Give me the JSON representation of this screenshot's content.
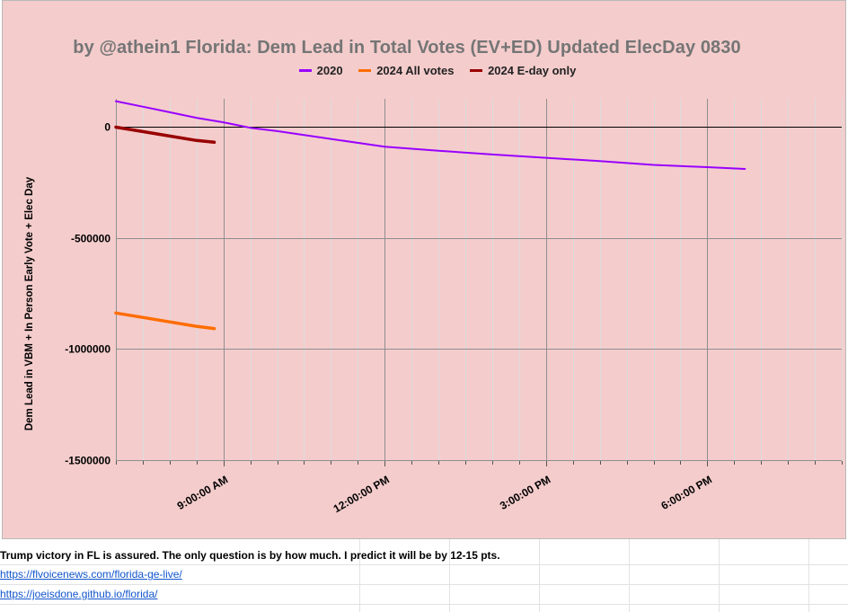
{
  "chart_data": {
    "type": "line",
    "title": "by @athein1 Florida: Dem Lead in Total Votes (EV+ED) Updated ElecDay 0830",
    "xlabel": "",
    "ylabel": "Dem Lead in VBM + In Person Early Vote + Elec Day",
    "x_unit": "time of day (hours)",
    "xlim": [
      7.0,
      20.5
    ],
    "ylim": [
      -1500000,
      120000
    ],
    "y_ticks": [
      0,
      -500000,
      -1000000,
      -1500000
    ],
    "y_tick_labels": [
      "0",
      "-500000",
      "-1000000",
      "-1500000"
    ],
    "x_ticks": [
      9,
      12,
      15,
      18
    ],
    "x_tick_labels": [
      "9:00:00 AM",
      "12:00:00 PM",
      "3:00:00 PM",
      "6:00:00 PM"
    ],
    "grid": true,
    "legend_position": "top",
    "series": [
      {
        "name": "2020",
        "color": "#9900ff",
        "x": [
          7.0,
          7.5,
          8.0,
          8.5,
          9.0,
          9.5,
          10.0,
          11.0,
          12.0,
          13.0,
          14.0,
          15.0,
          16.0,
          17.0,
          18.0,
          18.7
        ],
        "y": [
          115000,
          90000,
          65000,
          40000,
          20000,
          -5000,
          -20000,
          -55000,
          -90000,
          -108000,
          -125000,
          -140000,
          -155000,
          -172000,
          -182000,
          -190000
        ]
      },
      {
        "name": "2024 All votes",
        "color": "#ff6d01",
        "x": [
          7.0,
          7.5,
          8.0,
          8.5,
          8.83
        ],
        "y": [
          -838000,
          -858000,
          -878000,
          -898000,
          -908000
        ]
      },
      {
        "name": "2024 E-day only",
        "color": "#990000",
        "x": [
          7.0,
          7.5,
          8.0,
          8.5,
          8.83
        ],
        "y": [
          -2000,
          -22000,
          -42000,
          -62000,
          -70000
        ]
      }
    ]
  },
  "notes": {
    "comment": "Trump victory in FL is assured.  The only question is by how much.  I predict it will be by 12-15 pts.",
    "link1": "https://flvoicenews.com/florida-ge-live/",
    "link2": "https://joeisdone.github.io/florida/"
  }
}
